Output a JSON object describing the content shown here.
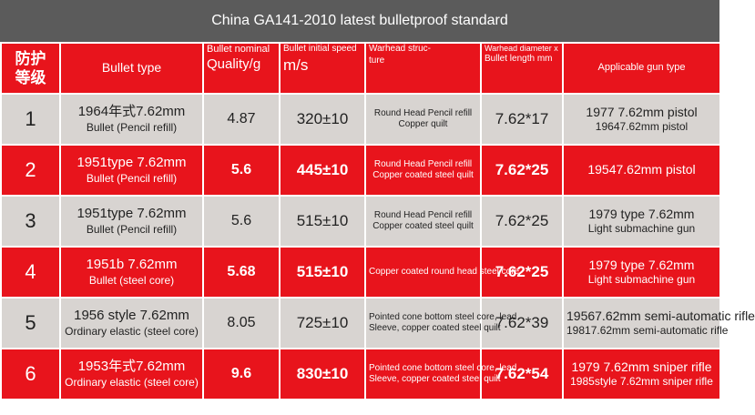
{
  "title": "China GA141-2010 latest bulletproof standard",
  "table": {
    "header": [
      [
        "防护",
        "等级"
      ],
      [
        "Bullet type"
      ],
      [
        "Bullet nominal",
        "Quality/g"
      ],
      [
        "Bullet initial speed",
        "m/s"
      ],
      [
        "Warhead struc-",
        "ture"
      ],
      [
        "Warhead diameter x",
        "Bullet length mm"
      ],
      [
        "Applicable gun type"
      ]
    ],
    "rows": [
      [
        [
          "1"
        ],
        [
          "1964年式7.62mm",
          "Bullet (Pencil refill)"
        ],
        [
          "4.87"
        ],
        [
          "320±10"
        ],
        [
          "Round Head Pencil refill",
          "Copper quilt"
        ],
        [
          "7.62*17"
        ],
        [
          "1977 7.62mm pistol",
          "19647.62mm pistol"
        ]
      ],
      [
        [
          "2"
        ],
        [
          "1951type 7.62mm",
          "Bullet (Pencil refill)"
        ],
        [
          "5.6"
        ],
        [
          "445±10"
        ],
        [
          "Round Head Pencil refill",
          "Copper coated steel quilt"
        ],
        [
          "7.62*25"
        ],
        [
          "19547.62mm pistol"
        ]
      ],
      [
        [
          "3"
        ],
        [
          "1951type 7.62mm",
          "Bullet (Pencil refill)"
        ],
        [
          "5.6"
        ],
        [
          "515±10"
        ],
        [
          "Round Head Pencil refill",
          "Copper coated steel quilt"
        ],
        [
          "7.62*25"
        ],
        [
          "1979 type 7.62mm",
          "Light submachine gun"
        ]
      ],
      [
        [
          "4"
        ],
        [
          "1951b 7.62mm",
          "Bullet (steel core)"
        ],
        [
          "5.68"
        ],
        [
          "515±10"
        ],
        [
          "Copper coated round head steel core"
        ],
        [
          "7.62*25"
        ],
        [
          "1979 type 7.62mm",
          "Light submachine gun"
        ]
      ],
      [
        [
          "5"
        ],
        [
          "1956 style 7.62mm",
          "Ordinary elastic (steel core)"
        ],
        [
          "8.05"
        ],
        [
          "725±10"
        ],
        [
          "Pointed cone bottom steel core, lead",
          "Sleeve, copper coated steel quilt"
        ],
        [
          "7.62*39"
        ],
        [
          "19567.62mm semi-automatic rifle",
          "19817.62mm semi-automatic rifle"
        ]
      ],
      [
        [
          "6"
        ],
        [
          "1953年式7.62mm",
          "Ordinary elastic (steel core)"
        ],
        [
          "9.6"
        ],
        [
          "830±10"
        ],
        [
          "Pointed cone bottom steel core, lead",
          "Sleeve, copper coated steel quilt"
        ],
        [
          "7.62*54"
        ],
        [
          "1979 7.62mm sniper rifle",
          "1985style 7.62mm sniper rifle"
        ]
      ]
    ]
  }
}
